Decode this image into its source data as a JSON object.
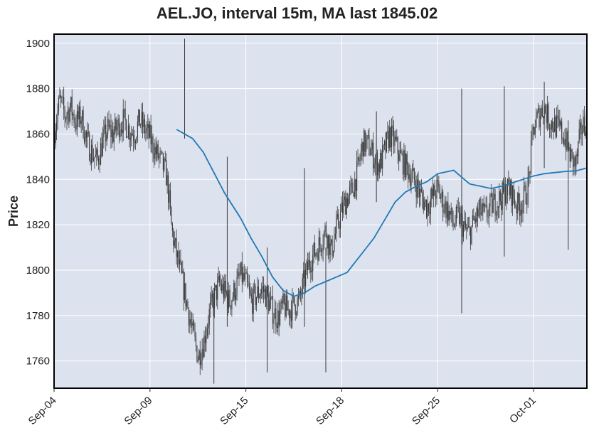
{
  "chart_data": {
    "type": "candlestick",
    "title": "AEL.JO, interval 15m, MA last 1845.02",
    "ylabel": "Price",
    "xlabel": "",
    "ylim": [
      1748,
      1904
    ],
    "y_ticks": [
      1760,
      1780,
      1800,
      1820,
      1840,
      1860,
      1880,
      1900
    ],
    "x_tick_labels": [
      "Sep-04",
      "Sep-09",
      "Sep-15",
      "Sep-18",
      "Sep-25",
      "Oct-01"
    ],
    "grid": true,
    "price_path": [
      [
        0.0,
        1862
      ],
      [
        0.01,
        1875
      ],
      [
        0.02,
        1868
      ],
      [
        0.03,
        1872
      ],
      [
        0.04,
        1865
      ],
      [
        0.05,
        1868
      ],
      [
        0.06,
        1857
      ],
      [
        0.07,
        1852
      ],
      [
        0.08,
        1848
      ],
      [
        0.09,
        1856
      ],
      [
        0.1,
        1862
      ],
      [
        0.11,
        1860
      ],
      [
        0.12,
        1864
      ],
      [
        0.13,
        1866
      ],
      [
        0.14,
        1862
      ],
      [
        0.15,
        1860
      ],
      [
        0.16,
        1866
      ],
      [
        0.17,
        1862
      ],
      [
        0.18,
        1858
      ],
      [
        0.19,
        1852
      ],
      [
        0.2,
        1848
      ],
      [
        0.21,
        1842
      ],
      [
        0.215,
        1832
      ],
      [
        0.22,
        1818
      ],
      [
        0.23,
        1806
      ],
      [
        0.24,
        1795
      ],
      [
        0.25,
        1784
      ],
      [
        0.26,
        1772
      ],
      [
        0.27,
        1762
      ],
      [
        0.28,
        1768
      ],
      [
        0.29,
        1780
      ],
      [
        0.3,
        1788
      ],
      [
        0.31,
        1794
      ],
      [
        0.32,
        1790
      ],
      [
        0.33,
        1786
      ],
      [
        0.34,
        1792
      ],
      [
        0.35,
        1798
      ],
      [
        0.36,
        1794
      ],
      [
        0.37,
        1786
      ],
      [
        0.38,
        1789
      ],
      [
        0.39,
        1792
      ],
      [
        0.4,
        1788
      ],
      [
        0.41,
        1782
      ],
      [
        0.42,
        1779
      ],
      [
        0.43,
        1784
      ],
      [
        0.44,
        1782
      ],
      [
        0.45,
        1785
      ],
      [
        0.46,
        1786
      ],
      [
        0.47,
        1796
      ],
      [
        0.48,
        1804
      ],
      [
        0.49,
        1808
      ],
      [
        0.5,
        1812
      ],
      [
        0.51,
        1818
      ],
      [
        0.52,
        1808
      ],
      [
        0.53,
        1818
      ],
      [
        0.54,
        1826
      ],
      [
        0.55,
        1832
      ],
      [
        0.56,
        1835
      ],
      [
        0.57,
        1844
      ],
      [
        0.58,
        1856
      ],
      [
        0.59,
        1855
      ],
      [
        0.6,
        1850
      ],
      [
        0.61,
        1846
      ],
      [
        0.62,
        1852
      ],
      [
        0.63,
        1860
      ],
      [
        0.64,
        1856
      ],
      [
        0.65,
        1850
      ],
      [
        0.66,
        1846
      ],
      [
        0.67,
        1842
      ],
      [
        0.68,
        1838
      ],
      [
        0.69,
        1832
      ],
      [
        0.7,
        1828
      ],
      [
        0.71,
        1832
      ],
      [
        0.72,
        1836
      ],
      [
        0.73,
        1830
      ],
      [
        0.74,
        1826
      ],
      [
        0.75,
        1820
      ],
      [
        0.76,
        1824
      ],
      [
        0.77,
        1818
      ],
      [
        0.78,
        1816
      ],
      [
        0.79,
        1822
      ],
      [
        0.8,
        1826
      ],
      [
        0.81,
        1824
      ],
      [
        0.82,
        1828
      ],
      [
        0.83,
        1830
      ],
      [
        0.84,
        1832
      ],
      [
        0.85,
        1836
      ],
      [
        0.86,
        1834
      ],
      [
        0.87,
        1828
      ],
      [
        0.88,
        1830
      ],
      [
        0.89,
        1836
      ],
      [
        0.9,
        1862
      ],
      [
        0.91,
        1868
      ],
      [
        0.92,
        1872
      ],
      [
        0.93,
        1866
      ],
      [
        0.94,
        1864
      ],
      [
        0.95,
        1862
      ],
      [
        0.96,
        1858
      ],
      [
        0.97,
        1850
      ],
      [
        0.98,
        1846
      ],
      [
        0.99,
        1862
      ],
      [
        1.0,
        1866
      ]
    ],
    "ma_line": [
      [
        0.23,
        1862
      ],
      [
        0.26,
        1858
      ],
      [
        0.28,
        1852
      ],
      [
        0.3,
        1843
      ],
      [
        0.32,
        1834
      ],
      [
        0.35,
        1823
      ],
      [
        0.37,
        1814
      ],
      [
        0.39,
        1806
      ],
      [
        0.41,
        1797
      ],
      [
        0.43,
        1791
      ],
      [
        0.45,
        1788.5
      ],
      [
        0.47,
        1790
      ],
      [
        0.49,
        1793
      ],
      [
        0.51,
        1795
      ],
      [
        0.53,
        1797
      ],
      [
        0.55,
        1799
      ],
      [
        0.56,
        1802
      ],
      [
        0.58,
        1808
      ],
      [
        0.6,
        1814
      ],
      [
        0.62,
        1822
      ],
      [
        0.64,
        1830
      ],
      [
        0.66,
        1834.5
      ],
      [
        0.68,
        1837
      ],
      [
        0.7,
        1839
      ],
      [
        0.72,
        1842.5
      ],
      [
        0.74,
        1843.5
      ],
      [
        0.75,
        1844
      ],
      [
        0.76,
        1842
      ],
      [
        0.78,
        1838
      ],
      [
        0.8,
        1837
      ],
      [
        0.82,
        1836
      ],
      [
        0.84,
        1837
      ],
      [
        0.86,
        1838.5
      ],
      [
        0.88,
        1840
      ],
      [
        0.9,
        1841.5
      ],
      [
        0.92,
        1842.5
      ],
      [
        0.94,
        1843
      ],
      [
        0.96,
        1843.5
      ],
      [
        0.98,
        1843.8
      ],
      [
        1.0,
        1845
      ]
    ],
    "spikes": [
      [
        0.245,
        1902,
        1858
      ],
      [
        0.47,
        1845,
        1775
      ],
      [
        0.325,
        1850,
        1775
      ],
      [
        0.605,
        1870,
        1830
      ],
      [
        0.765,
        1880,
        1781
      ],
      [
        0.845,
        1881,
        1806
      ],
      [
        0.92,
        1883,
        1845
      ],
      [
        0.965,
        1866,
        1809
      ],
      [
        0.51,
        1810,
        1755
      ],
      [
        0.4,
        1810,
        1755
      ],
      [
        0.3,
        1790,
        1750
      ]
    ],
    "colors": {
      "plot_bg": "#dce2ee",
      "grid": "#ffffff",
      "candle": "#3a3a3a",
      "ma": "#2279b5",
      "frame": "#000000"
    }
  }
}
